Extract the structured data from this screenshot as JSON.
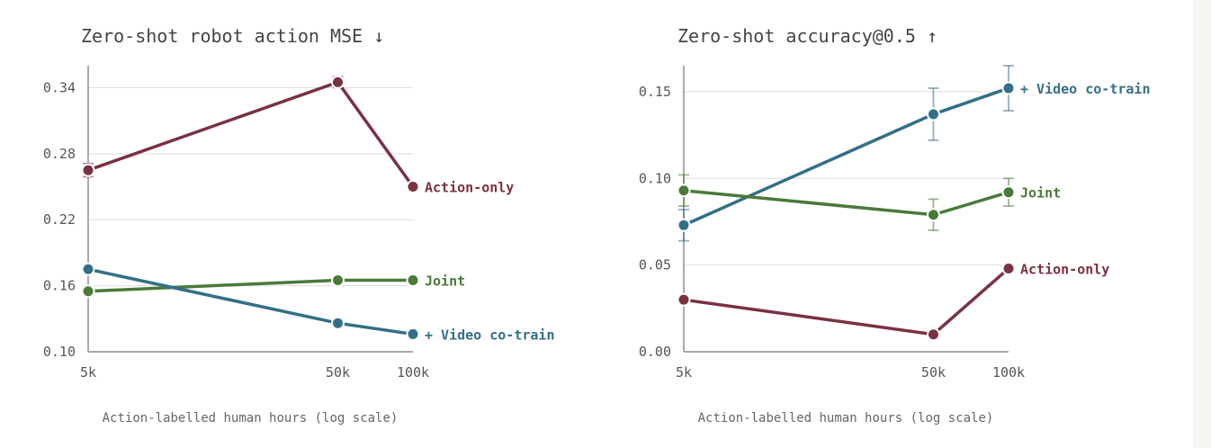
{
  "chart_data": [
    {
      "type": "line",
      "title": "Zero-shot robot action MSE ↓",
      "xlabel": "Action-labelled human hours (log scale)",
      "ylabel": "",
      "x_scale": "log",
      "categories": [
        "5k",
        "50k",
        "100k"
      ],
      "x": [
        5000,
        50000,
        100000
      ],
      "ylim": [
        0.1,
        0.36
      ],
      "yticks": [
        "0.10",
        "0.16",
        "0.22",
        "0.28",
        "0.34"
      ],
      "grid": true,
      "series": [
        {
          "name": "Action-only",
          "color": "#7a3141",
          "values": [
            0.265,
            0.345,
            0.25
          ],
          "err": [
            0.006,
            0.005,
            0.0
          ]
        },
        {
          "name": "Joint",
          "color": "#4a7a3a",
          "values": [
            0.155,
            0.165,
            0.165
          ],
          "err": [
            0,
            0,
            0
          ]
        },
        {
          "name": "+ Video co-train",
          "color": "#336f88",
          "values": [
            0.175,
            0.126,
            0.116
          ],
          "err": [
            0,
            0,
            0
          ]
        }
      ]
    },
    {
      "type": "line",
      "title": "Zero-shot accuracy@0.5 ↑",
      "xlabel": "Action-labelled human hours (log scale)",
      "ylabel": "",
      "x_scale": "log",
      "categories": [
        "5k",
        "50k",
        "100k"
      ],
      "x": [
        5000,
        50000,
        100000
      ],
      "ylim": [
        0.0,
        0.165
      ],
      "yticks": [
        "0.00",
        "0.05",
        "0.10",
        "0.15"
      ],
      "grid": true,
      "series": [
        {
          "name": "+ Video co-train",
          "color": "#336f88",
          "values": [
            0.073,
            0.137,
            0.152
          ],
          "err": [
            0.009,
            0.015,
            0.013
          ]
        },
        {
          "name": "Joint",
          "color": "#4a7a3a",
          "values": [
            0.093,
            0.079,
            0.092
          ],
          "err": [
            0.009,
            0.009,
            0.008
          ]
        },
        {
          "name": "Action-only",
          "color": "#7a3141",
          "values": [
            0.03,
            0.01,
            0.048
          ],
          "err": [
            0,
            0,
            0
          ]
        }
      ]
    }
  ]
}
